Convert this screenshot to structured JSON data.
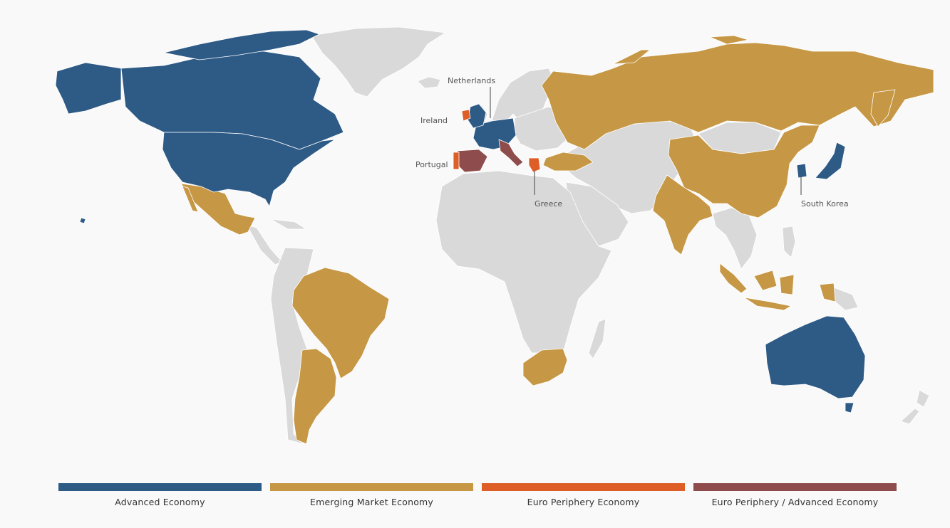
{
  "colors": {
    "background": "#f9f9f9",
    "other": "#d9d9d9",
    "advanced": "#2e5a86",
    "emerging": "#c69744",
    "euro_periphery": "#dd5e27",
    "euro_periphery_advanced": "#8e4d4c",
    "border": "#ffffff"
  },
  "callouts": {
    "netherlands": "Netherlands",
    "ireland": "Ireland",
    "portugal": "Portugal",
    "greece": "Greece",
    "south_korea": "South Korea"
  },
  "legend": [
    {
      "key": "advanced",
      "label": "Advanced Economy",
      "color": "#2e5a86"
    },
    {
      "key": "emerging",
      "label": "Emerging Market Economy",
      "color": "#c69744"
    },
    {
      "key": "euro_periphery",
      "label": "Euro Periphery Economy",
      "color": "#dd5e27"
    },
    {
      "key": "euro_periphery_advanced",
      "label": "Euro Periphery / Advanced Economy",
      "color": "#8e4d4c"
    }
  ]
}
